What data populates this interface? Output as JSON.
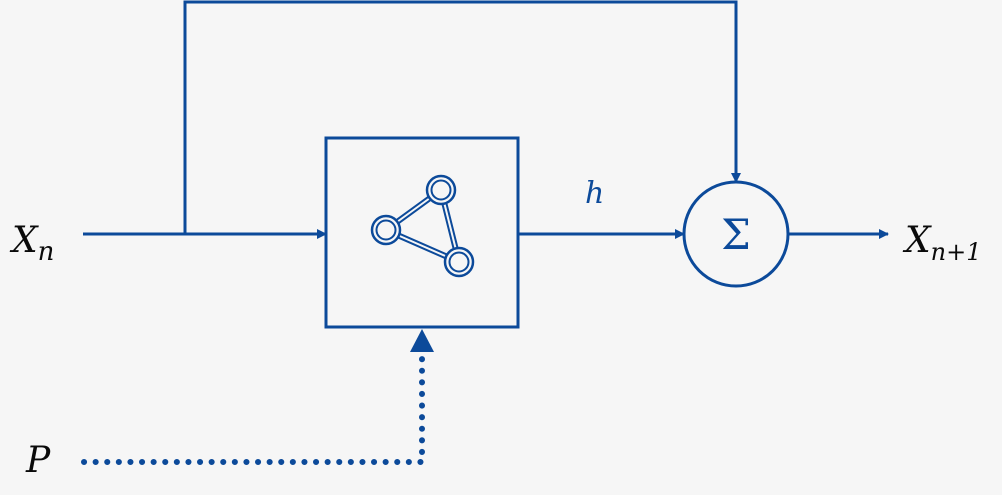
{
  "diagram": {
    "input_label": {
      "base": "X",
      "sub": "n"
    },
    "output_label": {
      "base": "X",
      "sub": "n+1"
    },
    "hidden_label": "h",
    "param_label": "P",
    "sum_symbol": "Σ",
    "block_icon": "network-graph-icon"
  },
  "colors": {
    "accent": "#0c4a9a",
    "background": "#f6f6f6",
    "text": "#0a0a0a"
  }
}
